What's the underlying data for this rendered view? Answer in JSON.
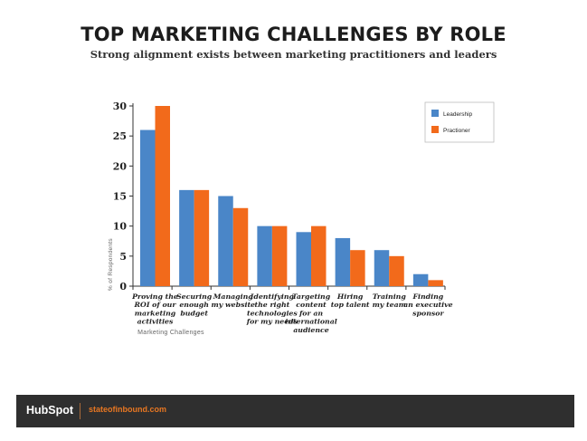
{
  "colors": {
    "leadership": "#4a86c8",
    "practitioner": "#f26a1b",
    "footer_bg": "#2f2f2f",
    "footer_link": "#e87722"
  },
  "footer": {
    "brand": "HubSpot",
    "url": "stateofinbound.com"
  },
  "chart_data": {
    "type": "bar",
    "title": "TOP MARKETING CHALLENGES BY ROLE",
    "subtitle": "Strong alignment exists between marketing practitioners and leaders",
    "xlabel": "Marketing Challenges",
    "ylabel": "% of Respondents",
    "ylim": [
      0,
      30
    ],
    "yticks": [
      "0",
      "5",
      "10",
      "15",
      "20",
      "25",
      "30"
    ],
    "grid": false,
    "legend_position": "top-right",
    "categories": [
      [
        "Proving the",
        "ROI of our",
        "marketing",
        "activities"
      ],
      [
        "Securing",
        "enough",
        "budget"
      ],
      [
        "Managing",
        "my website"
      ],
      [
        "Identifying",
        "the right",
        "technologies",
        "for my needs"
      ],
      [
        "Targeting",
        "content",
        "for an",
        "international",
        "audience"
      ],
      [
        "Hiring",
        "top talent"
      ],
      [
        "Training",
        "my team"
      ],
      [
        "Finding",
        "an executive",
        "sponsor"
      ]
    ],
    "series": [
      {
        "name": "Leadership",
        "values": [
          26,
          16,
          15,
          10,
          9,
          8,
          6,
          2
        ]
      },
      {
        "name": "Practioner",
        "values": [
          30,
          16,
          13,
          10,
          10,
          6,
          5,
          1
        ]
      }
    ]
  }
}
